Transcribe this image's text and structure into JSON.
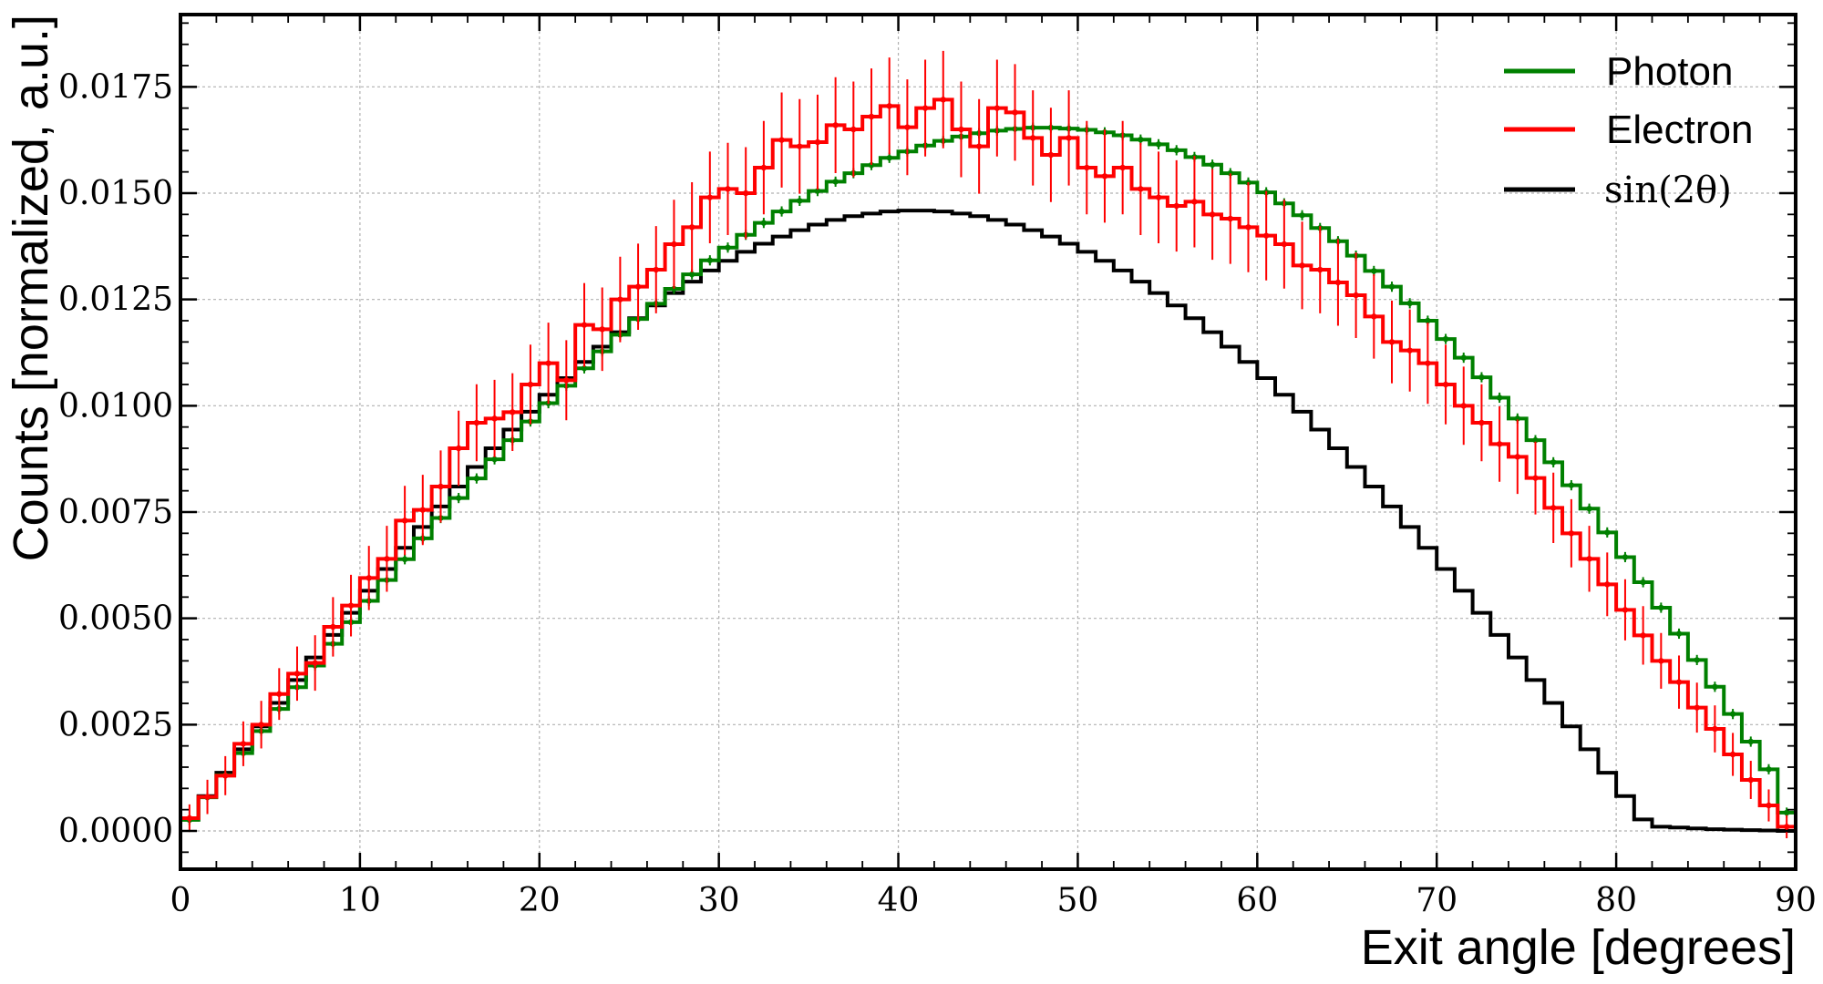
{
  "chart_data": {
    "type": "line",
    "title": "",
    "xlabel": "Exit angle [degrees]",
    "ylabel": "Counts [normalized, a.u.]",
    "xlim": [
      0,
      90
    ],
    "ylim": [
      -0.0009,
      0.0192
    ],
    "xticks": [
      "0",
      "10",
      "20",
      "30",
      "40",
      "50",
      "60",
      "70",
      "80",
      "90"
    ],
    "yticks": [
      "0.0000",
      "0.0025",
      "0.0050",
      "0.0075",
      "0.0100",
      "0.0125",
      "0.0150",
      "0.0175"
    ],
    "grid": true,
    "legend_position": "top-right",
    "bin_width": 1,
    "series": [
      {
        "name": "Photon",
        "color": "#008000",
        "style": "step-with-errorbars",
        "values": [
          0.00026,
          0.00079,
          0.00131,
          0.00183,
          0.00235,
          0.00287,
          0.00338,
          0.00389,
          0.0044,
          0.00491,
          0.00541,
          0.0059,
          0.00639,
          0.00688,
          0.00736,
          0.00783,
          0.00829,
          0.00874,
          0.00919,
          0.00963,
          0.01006,
          0.01047,
          0.01088,
          0.01128,
          0.01167,
          0.01204,
          0.0124,
          0.01275,
          0.01309,
          0.01342,
          0.01372,
          0.01402,
          0.0143,
          0.01457,
          0.01482,
          0.01505,
          0.01527,
          0.01547,
          0.01566,
          0.01583,
          0.01598,
          0.01612,
          0.01623,
          0.01633,
          0.01641,
          0.01647,
          0.01651,
          0.01654,
          0.01654,
          0.01652,
          0.01649,
          0.01643,
          0.01636,
          0.01626,
          0.01615,
          0.01601,
          0.01585,
          0.01567,
          0.01547,
          0.01525,
          0.01502,
          0.01476,
          0.01448,
          0.01418,
          0.01387,
          0.01353,
          0.01317,
          0.0128,
          0.01241,
          0.012,
          0.01157,
          0.01113,
          0.01067,
          0.01019,
          0.0097,
          0.00919,
          0.00867,
          0.00813,
          0.00758,
          0.00702,
          0.00644,
          0.00585,
          0.00525,
          0.00464,
          0.00402,
          0.00339,
          0.00275,
          0.0021,
          0.00145,
          0.00043
        ],
        "errors": 0.00012
      },
      {
        "name": "Electron",
        "color": "#ff0000",
        "style": "step-with-errorbars",
        "values": [
          0.0003,
          0.0008,
          0.0013,
          0.00205,
          0.0025,
          0.00322,
          0.0037,
          0.00395,
          0.0048,
          0.0053,
          0.00595,
          0.0064,
          0.0073,
          0.00755,
          0.0081,
          0.009,
          0.0096,
          0.0097,
          0.00985,
          0.0105,
          0.011,
          0.0106,
          0.0119,
          0.0118,
          0.0125,
          0.0128,
          0.0132,
          0.0138,
          0.0142,
          0.0149,
          0.0151,
          0.015,
          0.0156,
          0.01625,
          0.0161,
          0.0162,
          0.0166,
          0.0165,
          0.0168,
          0.01705,
          0.01655,
          0.017,
          0.0172,
          0.0165,
          0.0161,
          0.017,
          0.0169,
          0.0163,
          0.0159,
          0.0163,
          0.0156,
          0.0154,
          0.0156,
          0.0151,
          0.0149,
          0.0147,
          0.0148,
          0.0145,
          0.0144,
          0.0142,
          0.014,
          0.0138,
          0.0133,
          0.0132,
          0.0129,
          0.0126,
          0.0121,
          0.0115,
          0.0113,
          0.011,
          0.0105,
          0.01,
          0.0096,
          0.0091,
          0.0088,
          0.0083,
          0.0076,
          0.007,
          0.0064,
          0.0058,
          0.0052,
          0.0046,
          0.004,
          0.0035,
          0.0029,
          0.0024,
          0.0018,
          0.0012,
          0.0006,
          0.0001
        ],
        "error_scale": 0.06
      },
      {
        "name": "sin(2θ)",
        "label_math": "sin(2θ)",
        "color": "#000000",
        "style": "step",
        "values": [
          0.00027,
          0.00082,
          0.00137,
          0.00192,
          0.00246,
          0.00301,
          0.00355,
          0.00408,
          0.00461,
          0.00513,
          0.00565,
          0.00616,
          0.00666,
          0.00715,
          0.00763,
          0.0081,
          0.00856,
          0.009,
          0.00944,
          0.00986,
          0.01026,
          0.01065,
          0.01103,
          0.01139,
          0.01173,
          0.01206,
          0.01236,
          0.01265,
          0.01292,
          0.01318,
          0.01341,
          0.01362,
          0.01381,
          0.01398,
          0.01413,
          0.01426,
          0.01437,
          0.01446,
          0.01452,
          0.01457,
          0.01459,
          0.01459,
          0.01457,
          0.01452,
          0.01446,
          0.01437,
          0.01426,
          0.01413,
          0.01398,
          0.01381,
          0.01362,
          0.01341,
          0.01318,
          0.01292,
          0.01265,
          0.01236,
          0.01206,
          0.01173,
          0.01139,
          0.01103,
          0.01065,
          0.01026,
          0.00986,
          0.00944,
          0.009,
          0.00856,
          0.0081,
          0.00763,
          0.00715,
          0.00666,
          0.00616,
          0.00565,
          0.00513,
          0.00461,
          0.00408,
          0.00355,
          0.00301,
          0.00246,
          0.00192,
          0.00137,
          0.00082,
          0.00027,
          0.0001,
          8e-05,
          6e-05,
          4e-05,
          3e-05,
          2e-05,
          1e-05,
          0.0
        ]
      }
    ]
  }
}
